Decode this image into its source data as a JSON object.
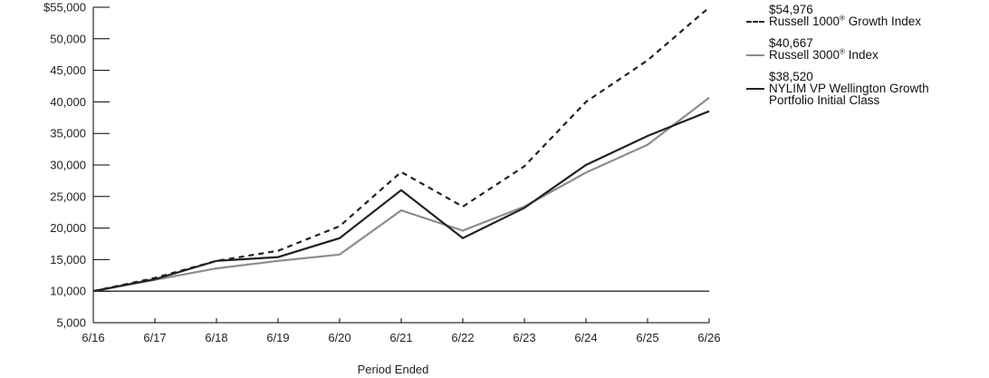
{
  "chart_data": {
    "type": "line",
    "x": [
      "6/16",
      "6/17",
      "6/18",
      "6/19",
      "6/20",
      "6/21",
      "6/22",
      "6/23",
      "6/24",
      "6/25",
      "6/26"
    ],
    "xlabel": "Period Ended",
    "ylabel": "",
    "ylim": [
      5000,
      55000
    ],
    "yticks": [
      5000,
      10000,
      15000,
      20000,
      25000,
      30000,
      35000,
      40000,
      45000,
      50000,
      55000
    ],
    "ytick_labels": [
      "5,000",
      "10,000",
      "15,000",
      "20,000",
      "25,000",
      "30,000",
      "35,000",
      "40,000",
      "45,000",
      "50,000",
      "$55,000"
    ],
    "reference_line": 10000,
    "legend_position": "right",
    "series": [
      {
        "name": "Russell 1000® Growth Index",
        "end_value_label": "$54,976",
        "style": "dashed",
        "color": "#222222",
        "values": [
          10000,
          12100,
          14800,
          16400,
          20300,
          28900,
          23400,
          29800,
          40000,
          46600,
          54976
        ]
      },
      {
        "name": "Russell 3000® Index",
        "end_value_label": "$40,667",
        "style": "solid",
        "color": "#8c8c8c",
        "values": [
          10000,
          11800,
          13600,
          14800,
          15800,
          22800,
          19600,
          23400,
          28800,
          33200,
          40667
        ]
      },
      {
        "name": "NYLIM VP Wellington Growth Portfolio Initial Class",
        "end_value_label": "$38,520",
        "style": "solid",
        "color": "#222222",
        "values": [
          10000,
          11900,
          14800,
          15400,
          18400,
          26000,
          18400,
          23200,
          30000,
          34600,
          38520
        ]
      }
    ]
  },
  "legend": {
    "entries": [
      {
        "value": "$54,976",
        "name_pre": "Russell 1000",
        "name_mark": "®",
        "name_post": " Growth Index"
      },
      {
        "value": "$40,667",
        "name_pre": "Russell 3000",
        "name_mark": "®",
        "name_post": " Index"
      },
      {
        "value": "$38,520",
        "name_pre": "NYLIM VP Wellington Growth Portfolio Initial Class",
        "name_mark": "",
        "name_post": ""
      }
    ]
  }
}
